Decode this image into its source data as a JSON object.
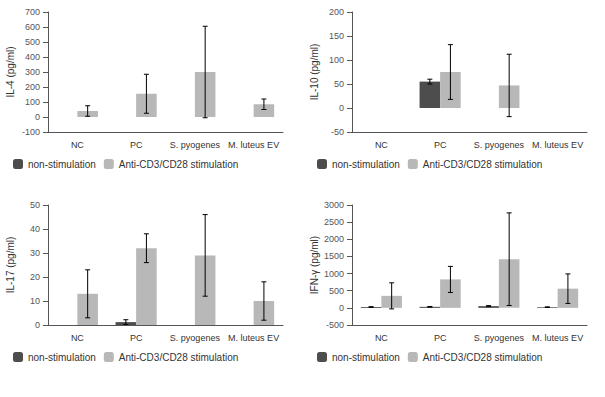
{
  "chart_data": [
    {
      "type": "bar",
      "categories": [
        "NC",
        "PC",
        "S. pyogenes",
        "M. luteus EV"
      ],
      "ylabel": "IL-4 (pg/ml)",
      "ylim": [
        -100,
        700
      ],
      "yticks": [
        -100,
        0,
        100,
        200,
        300,
        400,
        500,
        600,
        700
      ],
      "grid": false,
      "legend": "lower left",
      "series": [
        {
          "name": "non-stimulation",
          "color": "#4d4d4d",
          "values": [
            0,
            0,
            0,
            0
          ],
          "errors": [
            0,
            0,
            0,
            0
          ]
        },
        {
          "name": "Anti-CD3/CD28 stimulation",
          "color": "#b8b8b8",
          "values": [
            40,
            155,
            300,
            85
          ],
          "errors": [
            35,
            130,
            305,
            35
          ]
        }
      ]
    },
    {
      "type": "bar",
      "categories": [
        "NC",
        "PC",
        "S. pyogenes",
        "M. luteus EV"
      ],
      "ylabel": "IL-10 (pg/ml)",
      "ylim": [
        -50,
        200
      ],
      "yticks": [
        -50,
        0,
        50,
        100,
        150,
        200
      ],
      "grid": false,
      "legend": "lower left",
      "series": [
        {
          "name": "non-stimulation",
          "color": "#4d4d4d",
          "values": [
            0,
            55,
            0,
            0
          ],
          "errors": [
            0,
            5,
            0,
            0
          ]
        },
        {
          "name": "Anti-CD3/CD28 stimulation",
          "color": "#b8b8b8",
          "values": [
            0,
            75,
            47,
            0
          ],
          "errors": [
            0,
            57,
            65,
            0
          ]
        }
      ]
    },
    {
      "type": "bar",
      "categories": [
        "NC",
        "PC",
        "S. pyogenes",
        "M. luteus EV"
      ],
      "ylabel": "IL-17 (pg/ml)",
      "ylim": [
        0,
        50
      ],
      "yticks": [
        0,
        10,
        20,
        30,
        40,
        50
      ],
      "grid": false,
      "legend": "lower left",
      "series": [
        {
          "name": "non-stimulation",
          "color": "#4d4d4d",
          "values": [
            0,
            1.2,
            0,
            0
          ],
          "errors": [
            0,
            1.0,
            0,
            0
          ]
        },
        {
          "name": "Anti-CD3/CD28 stimulation",
          "color": "#b8b8b8",
          "values": [
            13,
            32,
            29,
            10
          ],
          "errors": [
            10,
            6,
            17,
            8
          ]
        }
      ]
    },
    {
      "type": "bar",
      "categories": [
        "NC",
        "PC",
        "S. pyogenes",
        "M. luteus EV"
      ],
      "ylabel": "IFN-γ (pg/ml)",
      "ylim": [
        -500,
        3000
      ],
      "yticks": [
        -500,
        0,
        500,
        1000,
        1500,
        2000,
        2500,
        3000
      ],
      "grid": false,
      "legend": "lower left",
      "series": [
        {
          "name": "non-stimulation",
          "color": "#4d4d4d",
          "values": [
            25,
            30,
            50,
            20
          ],
          "errors": [
            10,
            10,
            15,
            10
          ]
        },
        {
          "name": "Anti-CD3/CD28 stimulation",
          "color": "#b8b8b8",
          "values": [
            350,
            830,
            1420,
            560
          ],
          "errors": [
            380,
            380,
            1350,
            430
          ]
        }
      ]
    }
  ]
}
